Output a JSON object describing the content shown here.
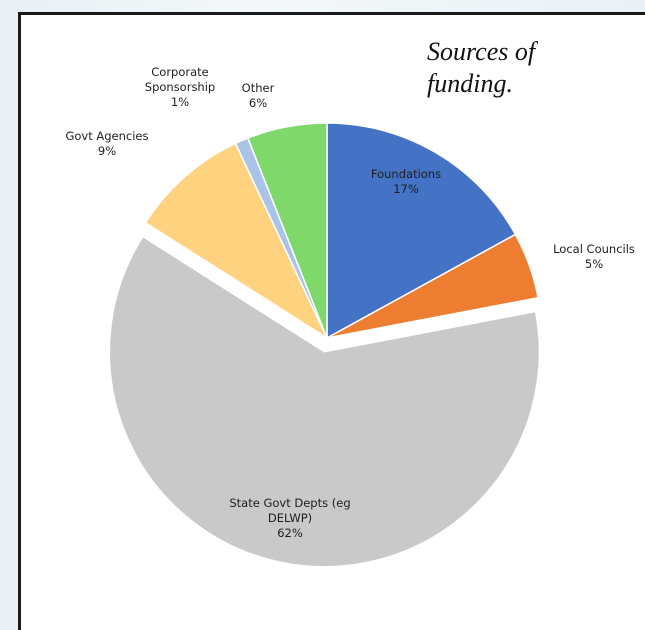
{
  "chart_data": {
    "type": "pie",
    "title": "Sources of\nfunding.",
    "slices": [
      {
        "label": "Foundations",
        "pct": "17%",
        "value": 17,
        "color": "#4472c4"
      },
      {
        "label": "Local Councils",
        "pct": "5%",
        "value": 5,
        "color": "#ed7d31"
      },
      {
        "label": "State Govt Depts (eg\nDELWP)",
        "pct": "62%",
        "value": 62,
        "color": "#c9c9c9"
      },
      {
        "label": "Govt Agencies",
        "pct": "9%",
        "value": 9,
        "color": "#ffd27f"
      },
      {
        "label": "Corporate\nSponsorship",
        "pct": "1%",
        "value": 1,
        "color": "#a9c4e8"
      },
      {
        "label": "Other",
        "pct": "6%",
        "value": 6,
        "color": "#7fd86a"
      }
    ],
    "exploded": "State Govt Depts (eg\nDELWP)"
  }
}
